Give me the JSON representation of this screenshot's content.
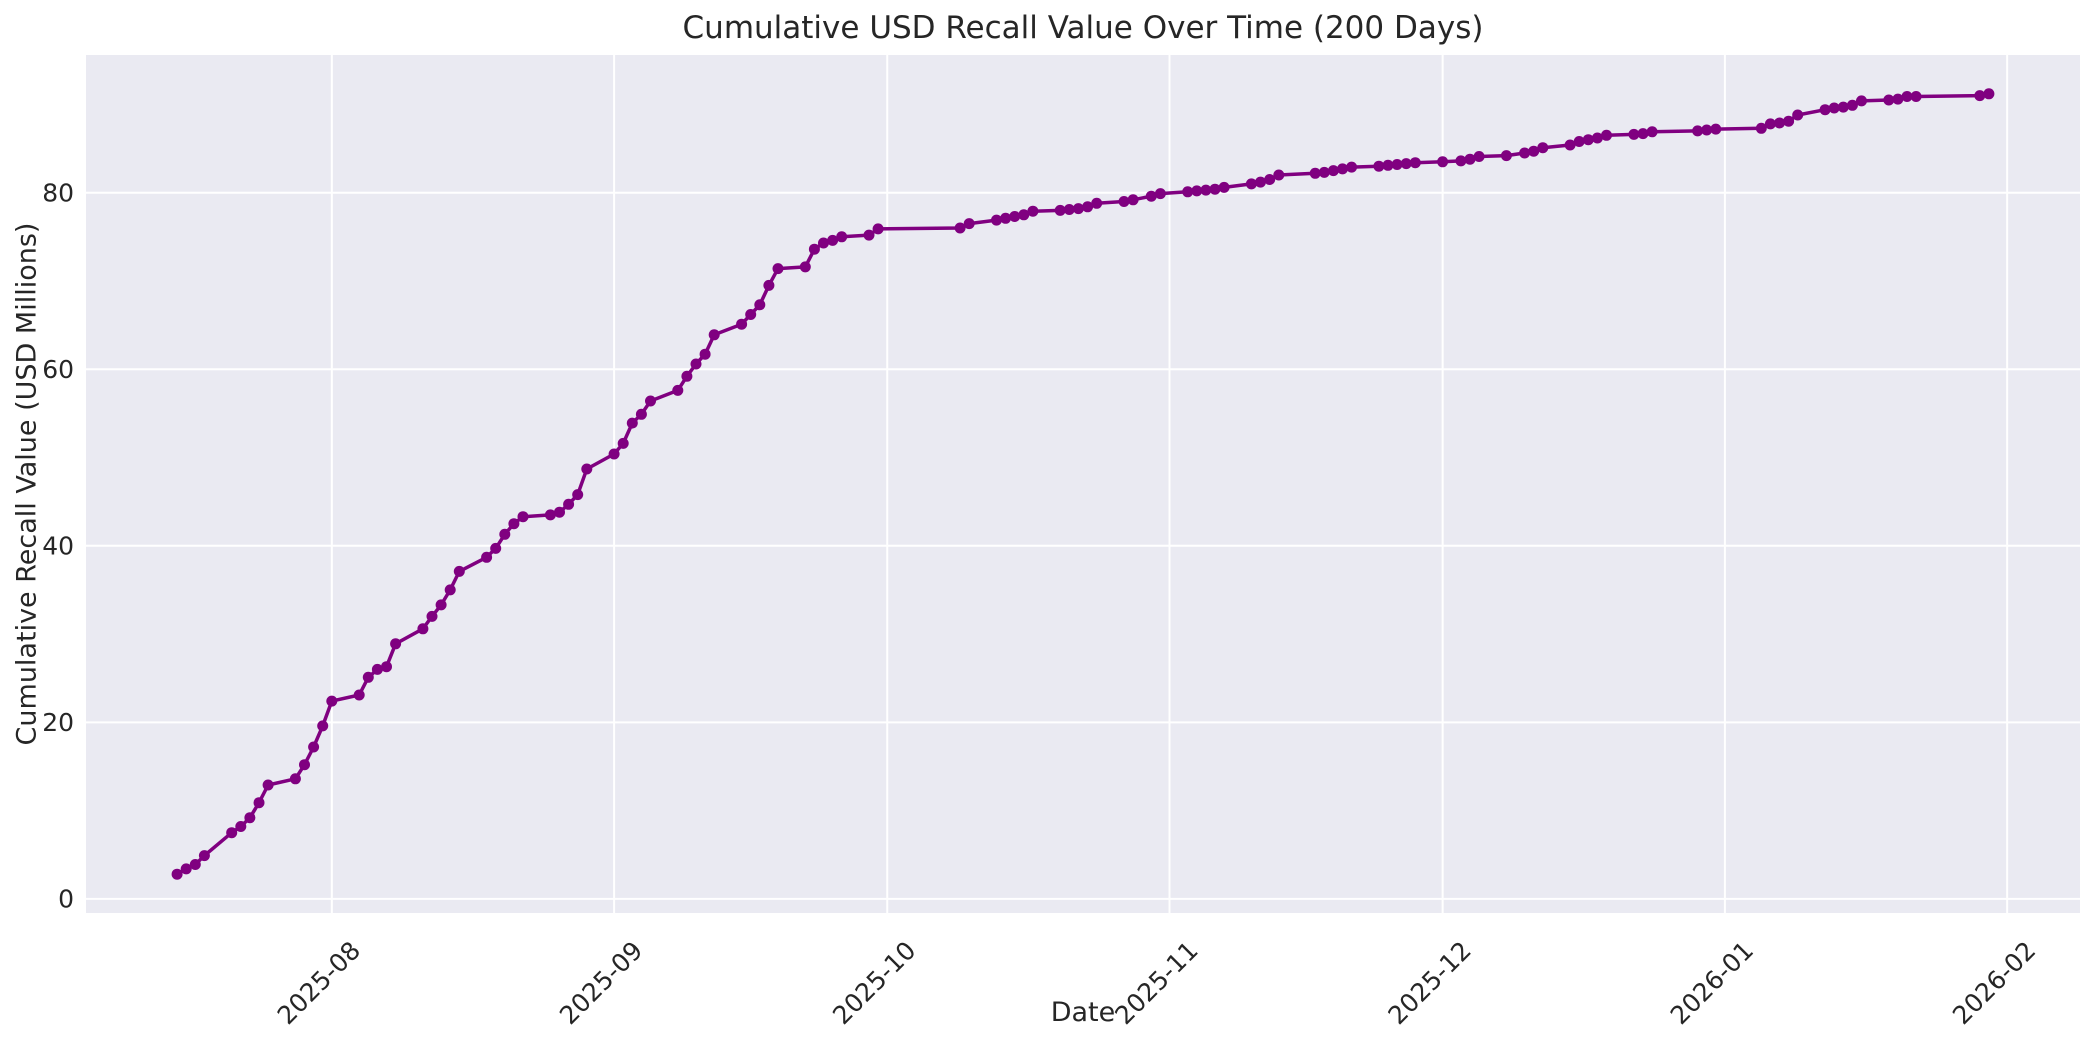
{
  "page": {
    "background": "#ffffff"
  },
  "chart_data": {
    "type": "line",
    "title": "Cumulative USD Recall Value Over Time (200 Days)",
    "xlabel": "Date",
    "ylabel": "Cumulative Recall Value (USD Millions)",
    "legend": false,
    "grid": true,
    "x_ticks": [
      {
        "label": "2025-08",
        "date": "2025-08-01"
      },
      {
        "label": "2025-09",
        "date": "2025-09-01"
      },
      {
        "label": "2025-10",
        "date": "2025-10-01"
      },
      {
        "label": "2025-11",
        "date": "2025-11-01"
      },
      {
        "label": "2025-12",
        "date": "2025-12-01"
      },
      {
        "label": "2026-01",
        "date": "2026-01-01"
      },
      {
        "label": "2026-02",
        "date": "2026-02-01"
      }
    ],
    "y_ticks": [
      0,
      20,
      40,
      60,
      80
    ],
    "xlim_dates": [
      "2025-07-05",
      "2026-02-09"
    ],
    "ylim": [
      -1.6,
      95.6
    ],
    "styles": {
      "line_color": "#800080",
      "marker_color": "#800080",
      "plot_bg": "#eaeaf2",
      "grid_color": "#ffffff",
      "text_color": "#262626",
      "fig_bg": "#ffffff"
    },
    "series": [
      {
        "name": "cumulative_recall_value_usd_millions",
        "dates": [
          "2025-07-15",
          "2025-07-16",
          "2025-07-17",
          "2025-07-18",
          "2025-07-21",
          "2025-07-22",
          "2025-07-23",
          "2025-07-24",
          "2025-07-25",
          "2025-07-28",
          "2025-07-29",
          "2025-07-30",
          "2025-07-31",
          "2025-08-01",
          "2025-08-04",
          "2025-08-05",
          "2025-08-06",
          "2025-08-07",
          "2025-08-08",
          "2025-08-11",
          "2025-08-12",
          "2025-08-13",
          "2025-08-14",
          "2025-08-15",
          "2025-08-18",
          "2025-08-19",
          "2025-08-20",
          "2025-08-21",
          "2025-08-22",
          "2025-08-25",
          "2025-08-26",
          "2025-08-27",
          "2025-08-28",
          "2025-08-29",
          "2025-09-01",
          "2025-09-02",
          "2025-09-03",
          "2025-09-04",
          "2025-09-05",
          "2025-09-08",
          "2025-09-09",
          "2025-09-10",
          "2025-09-11",
          "2025-09-12",
          "2025-09-15",
          "2025-09-16",
          "2025-09-17",
          "2025-09-18",
          "2025-09-19",
          "2025-09-22",
          "2025-09-23",
          "2025-09-24",
          "2025-09-25",
          "2025-09-26",
          "2025-09-29",
          "2025-09-30",
          "2025-10-09",
          "2025-10-10",
          "2025-10-13",
          "2025-10-14",
          "2025-10-15",
          "2025-10-16",
          "2025-10-17",
          "2025-10-20",
          "2025-10-21",
          "2025-10-22",
          "2025-10-23",
          "2025-10-24",
          "2025-10-27",
          "2025-10-28",
          "2025-10-30",
          "2025-10-31",
          "2025-11-03",
          "2025-11-04",
          "2025-11-05",
          "2025-11-06",
          "2025-11-07",
          "2025-11-10",
          "2025-11-11",
          "2025-11-12",
          "2025-11-13",
          "2025-11-17",
          "2025-11-18",
          "2025-11-19",
          "2025-11-20",
          "2025-11-21",
          "2025-11-24",
          "2025-11-25",
          "2025-11-26",
          "2025-11-27",
          "2025-11-28",
          "2025-12-01",
          "2025-12-03",
          "2025-12-04",
          "2025-12-05",
          "2025-12-08",
          "2025-12-10",
          "2025-12-11",
          "2025-12-12",
          "2025-12-15",
          "2025-12-16",
          "2025-12-17",
          "2025-12-18",
          "2025-12-19",
          "2025-12-22",
          "2025-12-23",
          "2025-12-24",
          "2025-12-29",
          "2025-12-30",
          "2025-12-31",
          "2026-01-05",
          "2026-01-06",
          "2026-01-07",
          "2026-01-08",
          "2026-01-09",
          "2026-01-12",
          "2026-01-13",
          "2026-01-14",
          "2026-01-15",
          "2026-01-16",
          "2026-01-19",
          "2026-01-20",
          "2026-01-21",
          "2026-01-22",
          "2026-01-29",
          "2026-01-30"
        ],
        "values": [
          2.8,
          3.4,
          3.9,
          4.9,
          7.5,
          8.2,
          9.2,
          10.9,
          12.9,
          13.6,
          15.2,
          17.2,
          19.6,
          22.4,
          23.1,
          25.1,
          26.0,
          26.3,
          28.9,
          30.6,
          32.0,
          33.3,
          35.0,
          37.1,
          38.7,
          39.7,
          41.3,
          42.5,
          43.3,
          43.5,
          43.8,
          44.7,
          45.8,
          48.7,
          50.4,
          51.6,
          53.9,
          54.9,
          56.4,
          57.6,
          59.2,
          60.6,
          61.7,
          63.9,
          65.1,
          66.2,
          67.3,
          69.5,
          71.4,
          71.6,
          73.6,
          74.3,
          74.6,
          75.0,
          75.2,
          75.9,
          76.0,
          76.5,
          76.9,
          77.1,
          77.3,
          77.5,
          77.9,
          78.0,
          78.1,
          78.2,
          78.4,
          78.8,
          79.0,
          79.2,
          79.6,
          79.9,
          80.1,
          80.2,
          80.3,
          80.4,
          80.6,
          81.0,
          81.2,
          81.5,
          82.0,
          82.2,
          82.3,
          82.5,
          82.7,
          82.9,
          83.0,
          83.1,
          83.2,
          83.3,
          83.4,
          83.5,
          83.6,
          83.8,
          84.1,
          84.2,
          84.5,
          84.7,
          85.1,
          85.4,
          85.8,
          86.0,
          86.2,
          86.5,
          86.6,
          86.7,
          86.9,
          87.0,
          87.1,
          87.2,
          87.3,
          87.8,
          87.9,
          88.1,
          88.8,
          89.4,
          89.6,
          89.7,
          89.9,
          90.4,
          90.5,
          90.6,
          90.9,
          90.9,
          91.0,
          91.2
        ]
      }
    ]
  }
}
